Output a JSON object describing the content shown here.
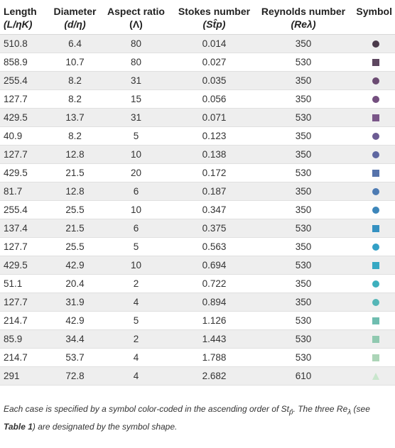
{
  "headers": [
    {
      "line1": "Length",
      "line2": "(L/ηK)"
    },
    {
      "line1": "Diameter",
      "line2": "(d/η)"
    },
    {
      "line1": "Aspect ratio",
      "line2": "(Λ)"
    },
    {
      "line1": "Stokes number",
      "line2": "(St̂p)"
    },
    {
      "line1": "Reynolds number",
      "line2": "(Reλ)"
    },
    {
      "line1": "Symbol",
      "line2": ""
    }
  ],
  "rows": [
    {
      "length": "510.8",
      "diameter": "6.4",
      "aspect": "80",
      "stokes": "0.014",
      "reynolds": "350",
      "symbol": "circle",
      "color": "#4a3a4a"
    },
    {
      "length": "858.9",
      "diameter": "10.7",
      "aspect": "80",
      "stokes": "0.027",
      "reynolds": "530",
      "symbol": "square",
      "color": "#5e4760"
    },
    {
      "length": "255.4",
      "diameter": "8.2",
      "aspect": "31",
      "stokes": "0.035",
      "reynolds": "350",
      "symbol": "circle",
      "color": "#6b4b72"
    },
    {
      "length": "127.7",
      "diameter": "8.2",
      "aspect": "15",
      "stokes": "0.056",
      "reynolds": "350",
      "symbol": "circle",
      "color": "#744f7f"
    },
    {
      "length": "429.5",
      "diameter": "13.7",
      "aspect": "31",
      "stokes": "0.071",
      "reynolds": "530",
      "symbol": "square",
      "color": "#7a5688"
    },
    {
      "length": "40.9",
      "diameter": "8.2",
      "aspect": "5",
      "stokes": "0.123",
      "reynolds": "350",
      "symbol": "circle",
      "color": "#6c5c93"
    },
    {
      "length": "127.7",
      "diameter": "12.8",
      "aspect": "10",
      "stokes": "0.138",
      "reynolds": "350",
      "symbol": "circle",
      "color": "#5e66a0"
    },
    {
      "length": "429.5",
      "diameter": "21.5",
      "aspect": "20",
      "stokes": "0.172",
      "reynolds": "530",
      "symbol": "square",
      "color": "#5673ab"
    },
    {
      "length": "81.7",
      "diameter": "12.8",
      "aspect": "6",
      "stokes": "0.187",
      "reynolds": "350",
      "symbol": "circle",
      "color": "#4d7bb3"
    },
    {
      "length": "255.4",
      "diameter": "25.5",
      "aspect": "10",
      "stokes": "0.347",
      "reynolds": "350",
      "symbol": "circle",
      "color": "#3d86ba"
    },
    {
      "length": "137.4",
      "diameter": "21.5",
      "aspect": "6",
      "stokes": "0.375",
      "reynolds": "530",
      "symbol": "square",
      "color": "#3591c1"
    },
    {
      "length": "127.7",
      "diameter": "25.5",
      "aspect": "5",
      "stokes": "0.563",
      "reynolds": "350",
      "symbol": "circle",
      "color": "#33a0c6"
    },
    {
      "length": "429.5",
      "diameter": "42.9",
      "aspect": "10",
      "stokes": "0.694",
      "reynolds": "530",
      "symbol": "square",
      "color": "#36a8c3"
    },
    {
      "length": "51.1",
      "diameter": "20.4",
      "aspect": "2",
      "stokes": "0.722",
      "reynolds": "350",
      "symbol": "circle",
      "color": "#3eb0bd"
    },
    {
      "length": "127.7",
      "diameter": "31.9",
      "aspect": "4",
      "stokes": "0.894",
      "reynolds": "350",
      "symbol": "circle",
      "color": "#55b6b7"
    },
    {
      "length": "214.7",
      "diameter": "42.9",
      "aspect": "5",
      "stokes": "1.126",
      "reynolds": "530",
      "symbol": "square",
      "color": "#6fbdb0"
    },
    {
      "length": "85.9",
      "diameter": "34.4",
      "aspect": "2",
      "stokes": "1.443",
      "reynolds": "530",
      "symbol": "square",
      "color": "#90c9b0"
    },
    {
      "length": "214.7",
      "diameter": "53.7",
      "aspect": "4",
      "stokes": "1.788",
      "reynolds": "530",
      "symbol": "square",
      "color": "#acd5b8"
    },
    {
      "length": "291",
      "diameter": "72.8",
      "aspect": "4",
      "stokes": "2.682",
      "reynolds": "610",
      "symbol": "triangle",
      "color": "#c9e6cd"
    }
  ],
  "caption": {
    "part1": "Each case is specified by a symbol color-coded in the ascending order of St",
    "part1_sub": "p̂",
    "part2": ". The three Re",
    "part2_sub": "λ",
    "part3": " (see ",
    "ref": "Table 1",
    "part4": ") are designated by the symbol shape."
  }
}
